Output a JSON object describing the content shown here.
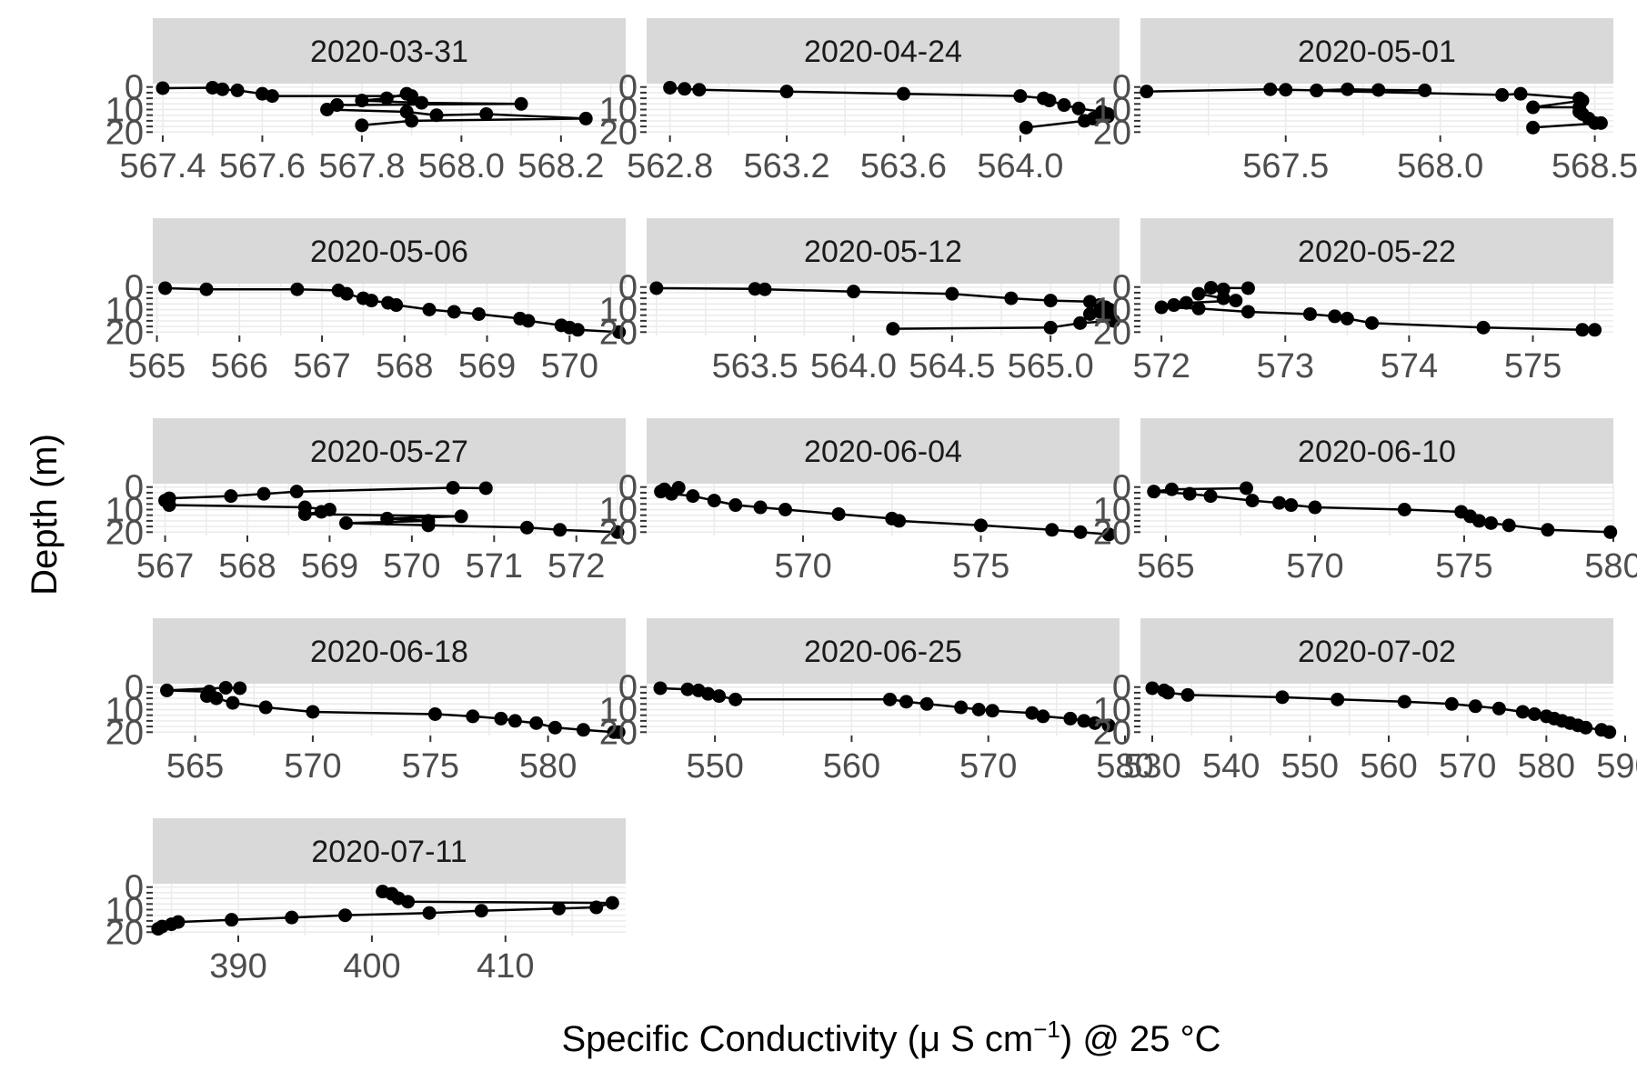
{
  "chart_data": {
    "type": "line",
    "facet_by": "date",
    "xlabel": {
      "main": "Specific Conductivity (",
      "mu": "μ",
      "unit": " S cm",
      "exp": "−1",
      "tail": ") @ 25 °C"
    },
    "ylabel": "Depth (m)",
    "y_ticks": [
      0,
      10,
      20
    ],
    "y_reversed": true,
    "markers": true,
    "grid": true,
    "panels": [
      {
        "label": "2020-03-31",
        "xlim": [
          567.38,
          568.33
        ],
        "x_ticks": [
          567.4,
          567.6,
          567.8,
          568.0,
          568.2
        ],
        "x_tick_labels": [
          "567.4",
          "567.6",
          "567.8",
          "568.0",
          "568.2"
        ],
        "points": [
          [
            567.4,
            0.5
          ],
          [
            567.5,
            0.3
          ],
          [
            567.52,
            1
          ],
          [
            567.55,
            1.5
          ],
          [
            567.6,
            3
          ],
          [
            567.62,
            4
          ],
          [
            567.9,
            4
          ],
          [
            567.89,
            3
          ],
          [
            567.85,
            5
          ],
          [
            567.8,
            6
          ],
          [
            567.92,
            7
          ],
          [
            568.12,
            7.5
          ],
          [
            567.75,
            8
          ],
          [
            567.73,
            10
          ],
          [
            567.89,
            11
          ],
          [
            567.95,
            12.5
          ],
          [
            568.05,
            12
          ],
          [
            568.25,
            14
          ],
          [
            567.9,
            15
          ],
          [
            567.8,
            17
          ]
        ]
      },
      {
        "label": "2020-04-24",
        "xlim": [
          562.72,
          564.34
        ],
        "x_ticks": [
          562.8,
          563.2,
          563.6,
          564.0
        ],
        "x_tick_labels": [
          "562.8",
          "563.2",
          "563.6",
          "564.0"
        ],
        "points": [
          [
            562.8,
            0.3
          ],
          [
            562.85,
            0.8
          ],
          [
            562.9,
            1.2
          ],
          [
            563.2,
            2
          ],
          [
            563.6,
            3
          ],
          [
            564.0,
            4
          ],
          [
            564.08,
            5
          ],
          [
            564.1,
            6
          ],
          [
            564.15,
            8
          ],
          [
            564.2,
            9.5
          ],
          [
            564.28,
            11
          ],
          [
            564.3,
            12
          ],
          [
            564.25,
            14
          ],
          [
            564.3,
            13
          ],
          [
            564.22,
            15
          ],
          [
            564.02,
            18
          ]
        ]
      },
      {
        "label": "2020-05-01",
        "xlim": [
          567.03,
          568.56
        ],
        "x_ticks": [
          567.5,
          568.0,
          568.5
        ],
        "x_tick_labels": [
          "567.5",
          "568.0",
          "568.5"
        ],
        "points": [
          [
            567.05,
            2
          ],
          [
            567.45,
            1
          ],
          [
            567.5,
            1.2
          ],
          [
            567.6,
            1.5
          ],
          [
            567.7,
            1
          ],
          [
            567.8,
            1.3
          ],
          [
            567.95,
            1.5
          ],
          [
            567.6,
            1.6
          ],
          [
            568.2,
            3.5
          ],
          [
            568.26,
            3
          ],
          [
            568.45,
            5
          ],
          [
            568.46,
            6
          ],
          [
            568.3,
            9
          ],
          [
            568.45,
            9
          ],
          [
            568.45,
            11
          ],
          [
            568.46,
            12
          ],
          [
            568.48,
            14
          ],
          [
            568.5,
            16
          ],
          [
            568.52,
            16
          ],
          [
            568.3,
            18
          ]
        ]
      },
      {
        "label": "2020-05-06",
        "xlim": [
          564.95,
          570.68
        ],
        "x_ticks": [
          565,
          566,
          567,
          568,
          569,
          570
        ],
        "x_tick_labels": [
          "565",
          "566",
          "567",
          "568",
          "569",
          "570"
        ],
        "points": [
          [
            565.1,
            0.5
          ],
          [
            565.6,
            1
          ],
          [
            566.7,
            1
          ],
          [
            567.2,
            1.5
          ],
          [
            567.3,
            3
          ],
          [
            567.5,
            5
          ],
          [
            567.6,
            6
          ],
          [
            567.8,
            7
          ],
          [
            567.9,
            8
          ],
          [
            568.3,
            10
          ],
          [
            568.6,
            11
          ],
          [
            568.9,
            12
          ],
          [
            569.4,
            14
          ],
          [
            569.5,
            15
          ],
          [
            569.9,
            17
          ],
          [
            570.0,
            18
          ],
          [
            570.1,
            19
          ],
          [
            570.6,
            20
          ]
        ]
      },
      {
        "label": "2020-05-12",
        "xlim": [
          562.95,
          565.35
        ],
        "x_ticks": [
          563.5,
          564.0,
          564.5,
          565.0
        ],
        "x_tick_labels": [
          "563.5",
          "564.0",
          "564.5",
          "565.0"
        ],
        "points": [
          [
            563.0,
            0.5
          ],
          [
            563.5,
            0.8
          ],
          [
            563.55,
            1
          ],
          [
            564.0,
            2
          ],
          [
            564.5,
            3
          ],
          [
            564.8,
            5
          ],
          [
            565.0,
            6
          ],
          [
            565.2,
            6.5
          ],
          [
            565.25,
            8
          ],
          [
            565.28,
            9
          ],
          [
            565.3,
            10
          ],
          [
            565.25,
            11
          ],
          [
            565.2,
            12
          ],
          [
            565.3,
            13
          ],
          [
            565.32,
            15
          ],
          [
            565.15,
            16
          ],
          [
            565.0,
            18
          ],
          [
            564.2,
            18.5
          ]
        ]
      },
      {
        "label": "2020-05-22",
        "xlim": [
          571.83,
          575.65
        ],
        "x_ticks": [
          572,
          573,
          574,
          575
        ],
        "x_tick_labels": [
          "572",
          "573",
          "574",
          "575"
        ],
        "points": [
          [
            572.7,
            0.5
          ],
          [
            572.4,
            0.3
          ],
          [
            572.5,
            1
          ],
          [
            572.3,
            3
          ],
          [
            572.5,
            5
          ],
          [
            572.6,
            6
          ],
          [
            572.2,
            7
          ],
          [
            572.1,
            8
          ],
          [
            572.0,
            9
          ],
          [
            572.3,
            9.5
          ],
          [
            572.7,
            11
          ],
          [
            573.2,
            12
          ],
          [
            573.4,
            13
          ],
          [
            573.5,
            14
          ],
          [
            573.7,
            16
          ],
          [
            574.6,
            18
          ],
          [
            575.4,
            19
          ],
          [
            575.5,
            19
          ]
        ]
      },
      {
        "label": "2020-05-27",
        "xlim": [
          566.85,
          572.6
        ],
        "x_ticks": [
          567,
          568,
          569,
          570,
          571,
          572
        ],
        "x_tick_labels": [
          "567",
          "568",
          "569",
          "570",
          "571",
          "572"
        ],
        "points": [
          [
            570.9,
            0.5
          ],
          [
            570.5,
            0.3
          ],
          [
            568.6,
            2
          ],
          [
            568.2,
            3
          ],
          [
            567.8,
            4
          ],
          [
            567.05,
            5
          ],
          [
            567.0,
            6
          ],
          [
            567.05,
            8
          ],
          [
            568.7,
            9
          ],
          [
            569.0,
            10
          ],
          [
            568.9,
            11
          ],
          [
            568.7,
            12
          ],
          [
            570.6,
            13
          ],
          [
            569.7,
            14
          ],
          [
            570.2,
            15
          ],
          [
            569.2,
            16
          ],
          [
            570.2,
            17
          ],
          [
            571.4,
            18
          ],
          [
            571.8,
            19
          ],
          [
            572.5,
            20
          ]
        ]
      },
      {
        "label": "2020-06-04",
        "xlim": [
          565.6,
          578.9
        ],
        "x_ticks": [
          570,
          575
        ],
        "x_tick_labels": [
          "570",
          "575"
        ],
        "points": [
          [
            566.5,
            0.3
          ],
          [
            566.1,
            1
          ],
          [
            566.0,
            2
          ],
          [
            566.3,
            3
          ],
          [
            566.9,
            4
          ],
          [
            567.5,
            6
          ],
          [
            568.1,
            8
          ],
          [
            568.8,
            9
          ],
          [
            569.5,
            10
          ],
          [
            571.0,
            12
          ],
          [
            572.5,
            14
          ],
          [
            572.7,
            15
          ],
          [
            575.0,
            17
          ],
          [
            577.0,
            19
          ],
          [
            577.8,
            20
          ],
          [
            578.6,
            21
          ]
        ]
      },
      {
        "label": "2020-06-10",
        "xlim": [
          564.15,
          580.0
        ],
        "x_ticks": [
          565,
          570,
          575,
          580
        ],
        "x_tick_labels": [
          "565",
          "570",
          "575",
          "580"
        ],
        "points": [
          [
            567.7,
            0.5
          ],
          [
            565.2,
            1
          ],
          [
            564.6,
            2
          ],
          [
            565.8,
            3
          ],
          [
            566.5,
            4
          ],
          [
            567.9,
            6
          ],
          [
            568.8,
            7
          ],
          [
            569.2,
            8
          ],
          [
            570.0,
            9
          ],
          [
            573.0,
            10
          ],
          [
            574.9,
            11
          ],
          [
            575.2,
            13
          ],
          [
            575.5,
            15
          ],
          [
            575.9,
            16
          ],
          [
            576.5,
            17
          ],
          [
            577.8,
            19
          ],
          [
            579.9,
            20
          ]
        ]
      },
      {
        "label": "2020-06-18",
        "xlim": [
          563.2,
          583.3
        ],
        "x_ticks": [
          565,
          570,
          575,
          580
        ],
        "x_tick_labels": [
          "565",
          "570",
          "575",
          "580"
        ],
        "points": [
          [
            566.9,
            0.5
          ],
          [
            566.3,
            0.3
          ],
          [
            563.8,
            1.5
          ],
          [
            565.6,
            2
          ],
          [
            565.5,
            4
          ],
          [
            565.9,
            5
          ],
          [
            566.6,
            7
          ],
          [
            568.0,
            9
          ],
          [
            570.0,
            11
          ],
          [
            575.2,
            12
          ],
          [
            576.8,
            13
          ],
          [
            578.0,
            14
          ],
          [
            578.6,
            15
          ],
          [
            579.5,
            16
          ],
          [
            580.3,
            18
          ],
          [
            581.5,
            19
          ],
          [
            582.8,
            20
          ],
          [
            583.0,
            20
          ]
        ]
      },
      {
        "label": "2020-06-25",
        "xlim": [
          545.0,
          579.6
        ],
        "x_ticks": [
          550,
          560,
          570,
          580
        ],
        "x_tick_labels": [
          "550",
          "560",
          "570",
          "580"
        ],
        "points": [
          [
            546.0,
            0.5
          ],
          [
            548.0,
            1
          ],
          [
            548.8,
            1.5
          ],
          [
            549.5,
            3
          ],
          [
            550.3,
            4
          ],
          [
            551.5,
            5.5
          ],
          [
            562.8,
            5.5
          ],
          [
            564.0,
            6.5
          ],
          [
            565.5,
            7.5
          ],
          [
            568.0,
            9
          ],
          [
            569.3,
            10
          ],
          [
            570.3,
            10.5
          ],
          [
            573.2,
            11.5
          ],
          [
            574.0,
            13
          ],
          [
            576.0,
            14
          ],
          [
            577.0,
            15
          ],
          [
            577.8,
            16
          ],
          [
            578.8,
            17
          ]
        ]
      },
      {
        "label": "2020-07-02",
        "xlim": [
          528.5,
          588.5
        ],
        "x_ticks": [
          530,
          540,
          550,
          560,
          570,
          580,
          590
        ],
        "x_tick_labels": [
          "530",
          "540",
          "550",
          "560",
          "570",
          "580",
          "590"
        ],
        "points": [
          [
            530.0,
            0.5
          ],
          [
            531.5,
            1.5
          ],
          [
            532.0,
            2.5
          ],
          [
            534.5,
            3.5
          ],
          [
            546.5,
            4.5
          ],
          [
            553.5,
            5.5
          ],
          [
            562.0,
            6.5
          ],
          [
            568.0,
            7.5
          ],
          [
            571.0,
            8.5
          ],
          [
            574.0,
            9.5
          ],
          [
            577.0,
            11
          ],
          [
            578.5,
            12
          ],
          [
            580.0,
            13
          ],
          [
            581.0,
            14
          ],
          [
            582.0,
            15
          ],
          [
            583.0,
            16
          ],
          [
            584.0,
            17
          ],
          [
            585.0,
            18
          ],
          [
            587.0,
            19
          ],
          [
            588.0,
            20
          ]
        ]
      },
      {
        "label": "2020-07-11",
        "xlim": [
          383.6,
          419.0
        ],
        "x_ticks": [
          390,
          400,
          410
        ],
        "x_tick_labels": [
          "390",
          "400",
          "410"
        ],
        "points": [
          [
            400.8,
            2
          ],
          [
            401.5,
            3
          ],
          [
            402.0,
            5
          ],
          [
            402.7,
            6.5
          ],
          [
            418.0,
            7
          ],
          [
            416.8,
            9
          ],
          [
            414.0,
            9.5
          ],
          [
            408.2,
            10.5
          ],
          [
            404.3,
            11.5
          ],
          [
            398.0,
            12.5
          ],
          [
            394.0,
            13.5
          ],
          [
            389.5,
            14.5
          ],
          [
            385.5,
            15.5
          ],
          [
            385.0,
            16.5
          ],
          [
            384.3,
            17.5
          ],
          [
            384.0,
            18.5
          ]
        ]
      }
    ]
  }
}
